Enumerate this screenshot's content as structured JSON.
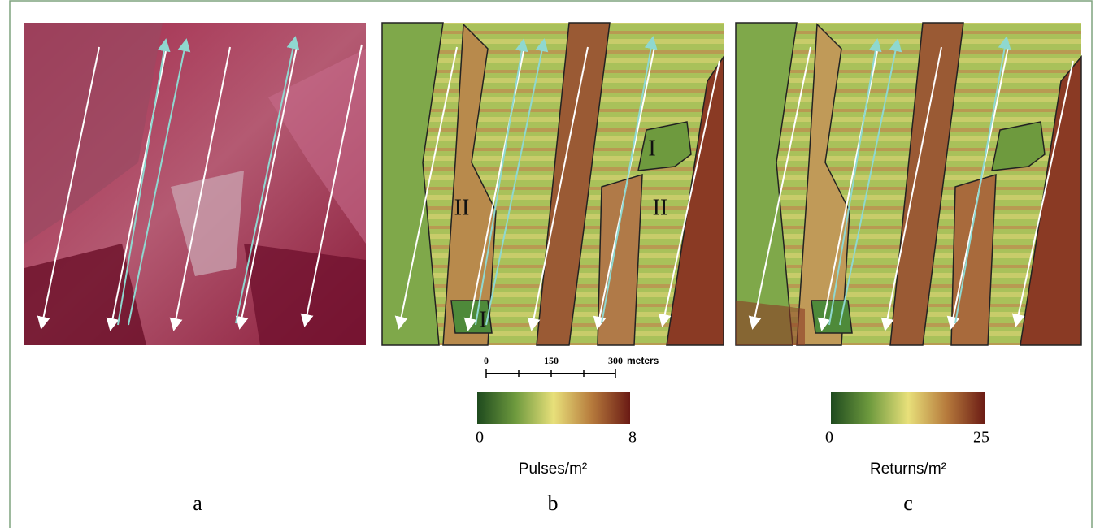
{
  "panels": [
    {
      "label": "a"
    },
    {
      "label": "b",
      "zones": [
        "II",
        "I",
        "II",
        "I"
      ],
      "colorbar": {
        "min": "0",
        "max": "8",
        "unit": "Pulses/m²"
      }
    },
    {
      "label": "c",
      "colorbar": {
        "min": "0",
        "max": "25",
        "unit": "Returns/m²"
      }
    }
  ],
  "scale_bar": {
    "ticks": [
      "0",
      "150",
      "300"
    ],
    "unit": "meters"
  }
}
